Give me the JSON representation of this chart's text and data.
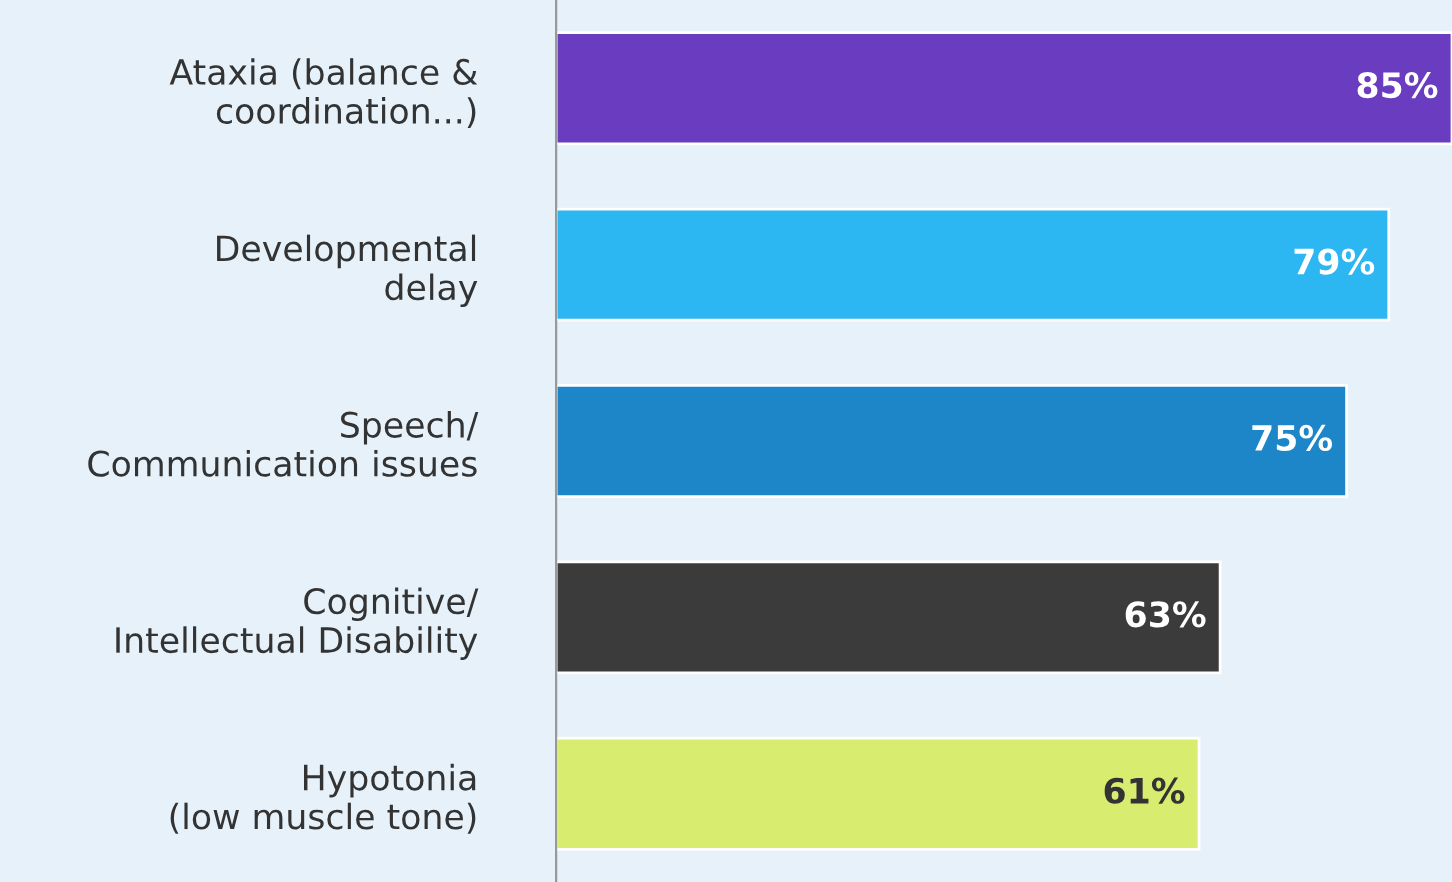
{
  "chart_data": {
    "type": "bar",
    "orientation": "horizontal",
    "categories": [
      "Ataxia (balance &\ncoordination...)",
      "Developmental\ndelay",
      "Speech/\nCommunication issues",
      "Cognitive/\nIntellectual Disability",
      "Hypotonia\n(low muscle tone)"
    ],
    "values": [
      85,
      79,
      75,
      63,
      61
    ],
    "colors": [
      "#6a3cbf",
      "#2cb6f2",
      "#1c86c9",
      "#3b3b3b",
      "#d8ec70"
    ],
    "value_labels": [
      "85%",
      "79%",
      "75%",
      "63%",
      "61%"
    ],
    "grid": false,
    "legend": false
  }
}
